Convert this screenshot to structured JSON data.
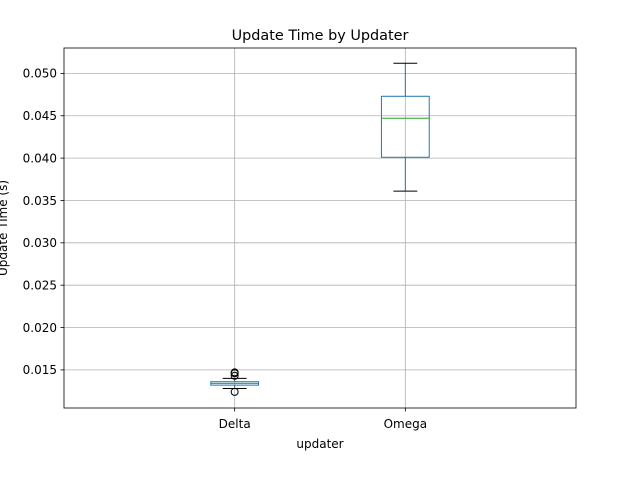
{
  "chart_data": {
    "type": "box",
    "title": "Update Time by Updater",
    "xlabel": "updater",
    "ylabel": "Update Time (s)",
    "categories": [
      "Delta",
      "Omega"
    ],
    "ylim": [
      0.0105,
      0.053
    ],
    "yticks": [
      0.015,
      0.02,
      0.025,
      0.03,
      0.035,
      0.04,
      0.045,
      0.05
    ],
    "ytick_labels": [
      "0.015",
      "0.020",
      "0.025",
      "0.030",
      "0.035",
      "0.040",
      "0.045",
      "0.050"
    ],
    "grid": true,
    "boxes": [
      {
        "category": "Delta",
        "whisker_low": 0.0128,
        "q1": 0.0132,
        "median": 0.0134,
        "q3": 0.0136,
        "whisker_high": 0.014,
        "fliers": [
          0.0124,
          0.0143,
          0.0146,
          0.0147
        ]
      },
      {
        "category": "Omega",
        "whisker_low": 0.0361,
        "q1": 0.0401,
        "median": 0.0447,
        "q3": 0.0473,
        "whisker_high": 0.0512,
        "fliers": []
      }
    ],
    "colors": {
      "box": "#1f77b4",
      "median": "#2ca02c",
      "whisker": "#1f77b4",
      "cap": "#000000",
      "grid": "#b0b0b0"
    }
  }
}
